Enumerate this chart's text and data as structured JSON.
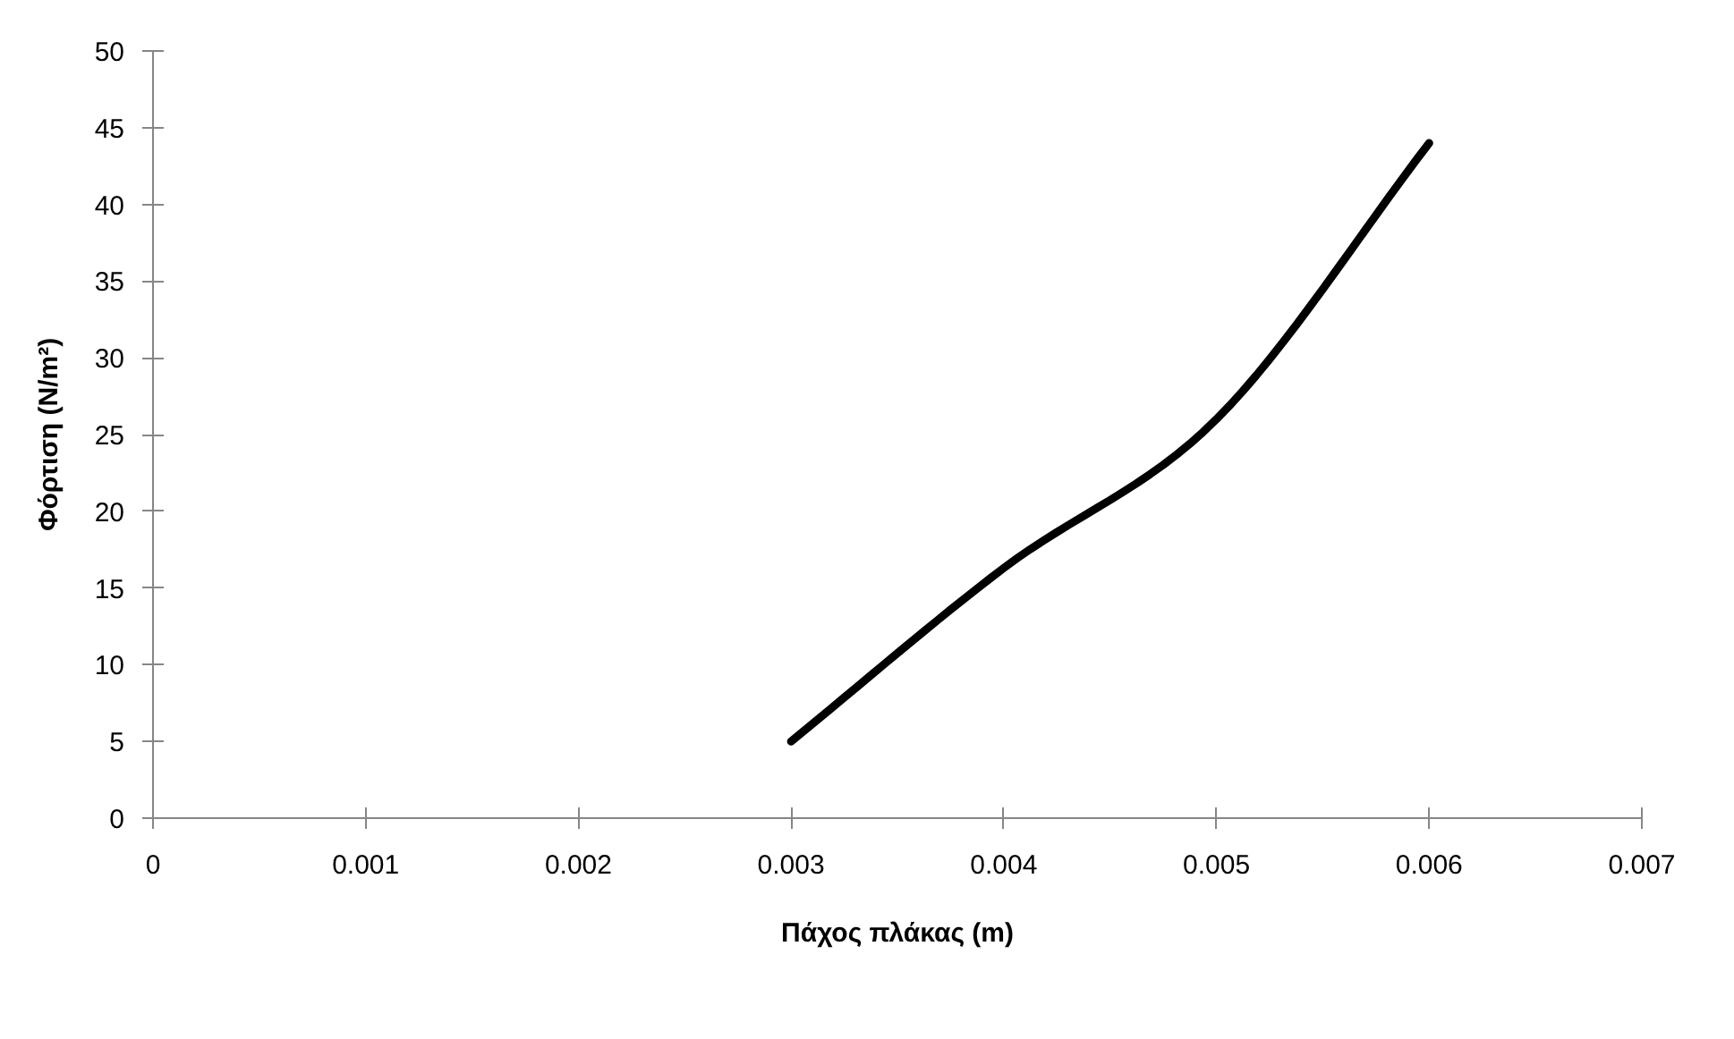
{
  "chart_data": {
    "type": "line",
    "xlabel": "Πάχος πλάκας (m)",
    "ylabel": "Φόρτιση (N/m²)",
    "x": [
      0.003,
      0.004,
      0.005,
      0.006
    ],
    "series": [
      {
        "color": "#000000",
        "values": [
          5,
          16.3,
          26,
          44
        ]
      }
    ],
    "xlim": [
      0,
      0.007
    ],
    "xticks": [
      0,
      0.001,
      0.002,
      0.003,
      0.004,
      0.005,
      0.006,
      0.007
    ],
    "ylim": [
      0,
      50
    ],
    "yticks": [
      0,
      5,
      10,
      15,
      20,
      25,
      30,
      35,
      40,
      45,
      50
    ],
    "grid": false,
    "marker": "none",
    "line_style": "solid"
  }
}
